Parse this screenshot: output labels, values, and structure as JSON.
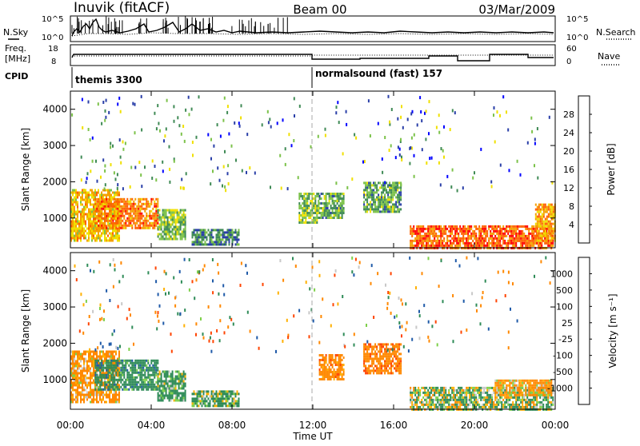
{
  "header": {
    "station": "Inuvik (fitACF)",
    "beam": "Beam 00",
    "date": "03/Mar/2009"
  },
  "nsky_panel": {
    "left_label": "N.Sky",
    "right_label": "N.Search",
    "left_ticks": [
      "10^5",
      "10^0"
    ],
    "right_ticks": [
      "10^5",
      "10^0"
    ]
  },
  "freq_panel": {
    "left_label_line1": "Freq.",
    "left_label_line2": "[MHz]",
    "right_label": "Nave",
    "left_ticks": [
      "18",
      "8"
    ],
    "right_ticks": [
      "60",
      "0"
    ]
  },
  "cpid": {
    "label": "CPID",
    "segments": [
      {
        "text": "themis 3300",
        "start_hour": 0.0
      },
      {
        "text": "normalsound (fast) 157",
        "start_hour": 12.0
      }
    ]
  },
  "colors": {
    "power_scale": [
      "#0000ff",
      "#2a3fa8",
      "#3f8a55",
      "#7cc24a",
      "#f0e000",
      "#f5a000",
      "#ff6000",
      "#ff0000"
    ],
    "velocity_scale": [
      "#ff0000",
      "#ff4400",
      "#ff8800",
      "#ffb000",
      "#c8c8c8",
      "#7ed04a",
      "#2e8b57",
      "#1f5aa8",
      "#2030c0"
    ]
  },
  "chart_data": [
    {
      "type": "heatmap",
      "name": "power",
      "xlabel": "",
      "ylabel": "Slant Range [km]",
      "xlim": [
        0,
        24
      ],
      "ylim": [
        180,
        4500
      ],
      "x_ticks": [],
      "y_ticks": [
        "1000",
        "2000",
        "3000",
        "4000"
      ],
      "y_tick_values": [
        1000,
        2000,
        3000,
        4000
      ],
      "colorbar": {
        "label": "Power [dB]",
        "ticks": [
          "4",
          "8",
          "12",
          "16",
          "20",
          "24",
          "28"
        ],
        "range": [
          0,
          32
        ]
      },
      "regions": [
        {
          "x": [
            0.0,
            2.4
          ],
          "y": [
            350,
            1800
          ],
          "value": 20
        },
        {
          "x": [
            1.2,
            4.3
          ],
          "y": [
            700,
            1550
          ],
          "value": 24
        },
        {
          "x": [
            4.3,
            5.7
          ],
          "y": [
            400,
            1250
          ],
          "value": 14
        },
        {
          "x": [
            6.0,
            8.3
          ],
          "y": [
            300,
            700
          ],
          "value": 10
        },
        {
          "x": [
            11.3,
            12.3
          ],
          "y": [
            900,
            1700
          ],
          "value": 14
        },
        {
          "x": [
            12.3,
            13.5
          ],
          "y": [
            1000,
            1700
          ],
          "value": 12
        },
        {
          "x": [
            14.5,
            16.4
          ],
          "y": [
            1200,
            2000
          ],
          "value": 12
        },
        {
          "x": [
            16.8,
            23.9
          ],
          "y": [
            180,
            800
          ],
          "value": 26
        },
        {
          "x": [
            23.0,
            24.0
          ],
          "y": [
            400,
            1400
          ],
          "value": 22
        }
      ]
    },
    {
      "type": "heatmap",
      "name": "velocity",
      "xlabel": "Time UT",
      "ylabel": "Slant Range [km]",
      "xlim": [
        0,
        24
      ],
      "ylim": [
        180,
        4500
      ],
      "x_ticks": [
        "00:00",
        "04:00",
        "08:00",
        "12:00",
        "16:00",
        "20:00",
        "00:00"
      ],
      "x_tick_values": [
        0,
        4,
        8,
        12,
        16,
        20,
        24
      ],
      "y_ticks": [
        "1000",
        "2000",
        "3000",
        "4000"
      ],
      "y_tick_values": [
        1000,
        2000,
        3000,
        4000
      ],
      "colorbar": {
        "label": "Velocity [m s⁻¹]",
        "ticks": [
          "1000",
          "500",
          "100",
          "25",
          "-25",
          "-100",
          "-500",
          "-1000"
        ]
      },
      "regions": [
        {
          "x": [
            0.0,
            2.4
          ],
          "y": [
            350,
            1800
          ],
          "value": -200
        },
        {
          "x": [
            1.2,
            4.3
          ],
          "y": [
            700,
            1550
          ],
          "value": 300
        },
        {
          "x": [
            4.3,
            5.7
          ],
          "y": [
            400,
            1250
          ],
          "value": 200
        },
        {
          "x": [
            6.0,
            8.3
          ],
          "y": [
            300,
            700
          ],
          "value": 150
        },
        {
          "x": [
            12.3,
            13.5
          ],
          "y": [
            1000,
            1700
          ],
          "value": -300
        },
        {
          "x": [
            14.5,
            16.4
          ],
          "y": [
            1200,
            2000
          ],
          "value": -350
        },
        {
          "x": [
            16.8,
            23.9
          ],
          "y": [
            180,
            800
          ],
          "value": 80
        },
        {
          "x": [
            21.0,
            23.8
          ],
          "y": [
            600,
            1000
          ],
          "value": -150
        }
      ]
    }
  ]
}
